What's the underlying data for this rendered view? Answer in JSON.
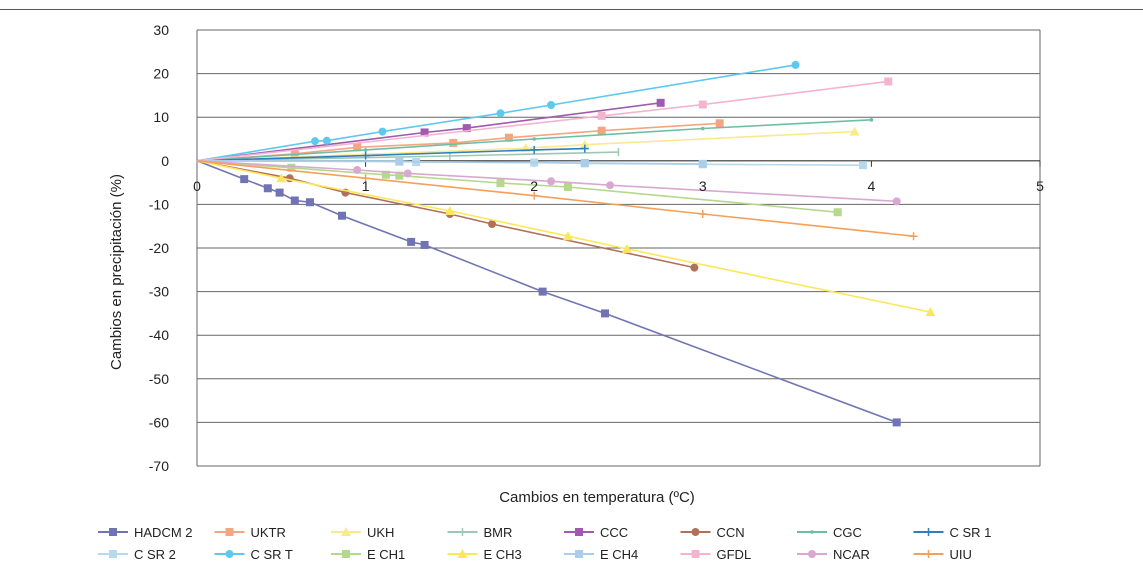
{
  "chart_data": {
    "type": "line",
    "title": "",
    "xlabel": "Cambios en temperatura (ºC)",
    "ylabel": "Cambios en precipitación (%)",
    "xlim": [
      0,
      5
    ],
    "ylim": [
      -70,
      30
    ],
    "x_ticks": [
      "0",
      "1",
      "2",
      "3",
      "4",
      "5"
    ],
    "y_ticks": [
      "30",
      "20",
      "10",
      "0",
      "-10",
      "-20",
      "-30",
      "-40",
      "-50",
      "-60",
      "-70"
    ],
    "grid": "horizontal",
    "legend_position": "bottom",
    "series": [
      {
        "name": "HADCM 2",
        "color": "#7174b4",
        "marker": "square",
        "points": [
          [
            0,
            0
          ],
          [
            0.28,
            -4.2
          ],
          [
            0.42,
            -6.3
          ],
          [
            0.49,
            -7.3
          ],
          [
            0.58,
            -9.1
          ],
          [
            0.67,
            -9.5
          ],
          [
            0.86,
            -12.6
          ],
          [
            1.27,
            -18.6
          ],
          [
            1.35,
            -19.3
          ],
          [
            2.05,
            -30
          ],
          [
            2.42,
            -35
          ],
          [
            4.15,
            -60
          ]
        ]
      },
      {
        "name": "UKTR",
        "color": "#f4a582",
        "marker": "square",
        "points": [
          [
            0,
            0
          ],
          [
            0.58,
            1.6
          ],
          [
            0.95,
            3.1
          ],
          [
            1.52,
            4.1
          ],
          [
            1.85,
            5.3
          ],
          [
            2.4,
            6.9
          ],
          [
            3.1,
            8.6
          ]
        ]
      },
      {
        "name": "UKH",
        "color": "#fbe98e",
        "marker": "triangle",
        "points": [
          [
            0,
            0
          ],
          [
            1.95,
            2.9
          ],
          [
            2.3,
            3.7
          ],
          [
            3.9,
            6.7
          ]
        ]
      },
      {
        "name": "BMR",
        "color": "#9ec8b4",
        "marker": "tick",
        "points": [
          [
            0,
            0
          ],
          [
            1.5,
            1.1
          ],
          [
            2.5,
            2
          ]
        ]
      },
      {
        "name": "CCC",
        "color": "#a05ab0",
        "marker": "square",
        "points": [
          [
            0,
            0
          ],
          [
            1.35,
            6.5
          ],
          [
            1.6,
            7.5
          ],
          [
            2.75,
            13.3
          ]
        ]
      },
      {
        "name": "CCN",
        "color": "#b0705a",
        "marker": "circle",
        "points": [
          [
            0,
            0
          ],
          [
            0.55,
            -4
          ],
          [
            0.88,
            -7.3
          ],
          [
            1.5,
            -12.2
          ],
          [
            1.75,
            -14.5
          ],
          [
            2.95,
            -24.5
          ]
        ]
      },
      {
        "name": "CGC",
        "color": "#6dbfa3",
        "marker": "dot",
        "points": [
          [
            0,
            0
          ],
          [
            1,
            2.5
          ],
          [
            2,
            5
          ],
          [
            3,
            7.4
          ],
          [
            4,
            9.4
          ]
        ]
      },
      {
        "name": "C SR 1",
        "color": "#2f7fbf",
        "marker": "plus",
        "points": [
          [
            0,
            0
          ],
          [
            1,
            1.2
          ],
          [
            2,
            2.5
          ],
          [
            2.3,
            2.8
          ]
        ]
      },
      {
        "name": "C SR 2",
        "color": "#b7d9ec",
        "marker": "square",
        "points": [
          [
            0,
            0
          ],
          [
            1.2,
            -0.1
          ],
          [
            1.3,
            -0.3
          ],
          [
            2,
            -0.4
          ],
          [
            2.3,
            -0.6
          ],
          [
            3,
            -0.8
          ],
          [
            3.95,
            -1
          ]
        ]
      },
      {
        "name": "C SR T",
        "color": "#5ec8ee",
        "marker": "circle",
        "points": [
          [
            0,
            0
          ],
          [
            0.7,
            4.5
          ],
          [
            0.77,
            4.6
          ],
          [
            1.1,
            6.7
          ],
          [
            1.8,
            10.9
          ],
          [
            2.1,
            12.8
          ],
          [
            3.55,
            22
          ]
        ]
      },
      {
        "name": "E CH1",
        "color": "#b4d88c",
        "marker": "square",
        "points": [
          [
            0,
            0
          ],
          [
            0.56,
            -1.6
          ],
          [
            1.12,
            -3.2
          ],
          [
            1.2,
            -3.4
          ],
          [
            1.8,
            -5.1
          ],
          [
            2.2,
            -6
          ],
          [
            3.8,
            -11.8
          ]
        ]
      },
      {
        "name": "E CH3",
        "color": "#fbe85a",
        "marker": "triangle",
        "points": [
          [
            0,
            0
          ],
          [
            0.5,
            -4
          ],
          [
            1.5,
            -11.5
          ],
          [
            2.2,
            -17.3
          ],
          [
            2.55,
            -20.2
          ],
          [
            4.35,
            -34.7
          ]
        ]
      },
      {
        "name": "E CH4",
        "color": "#aacdea",
        "marker": "square",
        "points": [
          [
            0,
            0
          ],
          [
            1.2,
            -0.2
          ],
          [
            2.3,
            -0.5
          ],
          [
            3,
            -0.7
          ]
        ]
      },
      {
        "name": "GFDL",
        "color": "#f4b4d0",
        "marker": "square",
        "points": [
          [
            0,
            0
          ],
          [
            2.4,
            10.3
          ],
          [
            3,
            12.9
          ],
          [
            4.1,
            18.2
          ]
        ]
      },
      {
        "name": "NCAR",
        "color": "#d8a8d0",
        "marker": "circle",
        "points": [
          [
            0,
            0
          ],
          [
            0.95,
            -2.1
          ],
          [
            1.25,
            -2.9
          ],
          [
            2.1,
            -4.7
          ],
          [
            2.45,
            -5.6
          ],
          [
            4.15,
            -9.3
          ]
        ]
      },
      {
        "name": "UIU",
        "color": "#f4a058",
        "marker": "plus",
        "points": [
          [
            0,
            0
          ],
          [
            1,
            -4
          ],
          [
            2,
            -8
          ],
          [
            3,
            -12.2
          ],
          [
            4.25,
            -17.3
          ]
        ]
      }
    ]
  }
}
